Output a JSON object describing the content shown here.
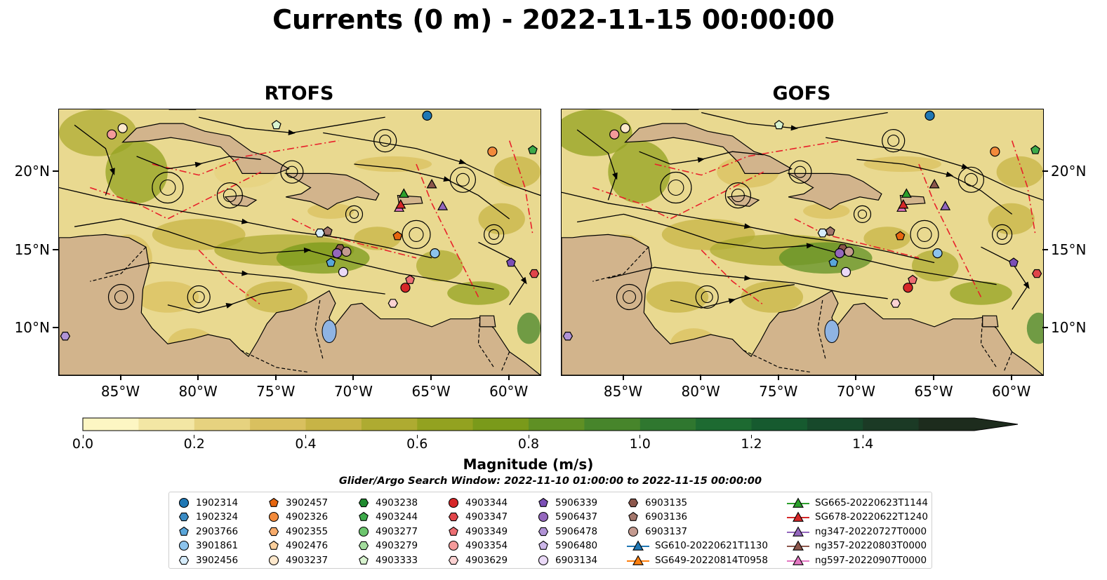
{
  "figure": {
    "title": "Currents (0 m) - 2022-11-15 00:00:00",
    "window_text": "Glider/Argo Search Window: 2022-11-10 01:00:00 to 2022-11-15 00:00:00"
  },
  "chart_data": {
    "type": "heatmap",
    "variable": "Currents (0 m)",
    "panels": [
      {
        "title": "RTOFS"
      },
      {
        "title": "GOFS"
      }
    ],
    "lon_range": [
      -89,
      -58
    ],
    "lat_range": [
      7,
      24
    ],
    "x_ticks": [
      -85,
      -80,
      -75,
      -70,
      -65,
      -60
    ],
    "x_tick_labels": [
      "85°W",
      "80°W",
      "75°W",
      "70°W",
      "65°W",
      "60°W"
    ],
    "y_ticks": [
      10,
      15,
      20
    ],
    "y_tick_labels": [
      "10°N",
      "15°N",
      "20°N"
    ],
    "colorbar": {
      "label": "Magnitude (m/s)",
      "min": 0.0,
      "max": 1.6,
      "step": 0.1,
      "extend": "max",
      "ticks": [
        0.0,
        0.2,
        0.4,
        0.6,
        0.8,
        1.0,
        1.2,
        1.4
      ],
      "tick_labels": [
        "0.0",
        "0.2",
        "0.4",
        "0.6",
        "0.8",
        "1.0",
        "1.2",
        "1.4"
      ],
      "colors": [
        "#fdf6c3",
        "#f3e6a4",
        "#e6d27f",
        "#d9c05f",
        "#c7b446",
        "#aeab31",
        "#93a220",
        "#7a9a1a",
        "#5f9024",
        "#47852b",
        "#2f772f",
        "#1d6a31",
        "#165a2f",
        "#17492b",
        "#1b3a25",
        "#1d2c1d"
      ]
    },
    "legend": [
      {
        "label": "1902314",
        "marker": "circle",
        "color": "#1f77b4"
      },
      {
        "label": "1902324",
        "marker": "hexagon",
        "color": "#3a8bc4"
      },
      {
        "label": "2903766",
        "marker": "pentagon",
        "color": "#5aa6da"
      },
      {
        "label": "3901861",
        "marker": "circle",
        "color": "#8cc3ec"
      },
      {
        "label": "3902456",
        "marker": "hexagon",
        "color": "#d6ecfb"
      },
      {
        "label": "3902457",
        "marker": "pentagon",
        "color": "#e6660f"
      },
      {
        "label": "4902326",
        "marker": "circle",
        "color": "#f28a3b"
      },
      {
        "label": "4902355",
        "marker": "hexagon",
        "color": "#f7ab6b"
      },
      {
        "label": "4902476",
        "marker": "pentagon",
        "color": "#fbcf9c"
      },
      {
        "label": "4903237",
        "marker": "circle",
        "color": "#fde8cc"
      },
      {
        "label": "4903238",
        "marker": "hexagon",
        "color": "#1f8a2e"
      },
      {
        "label": "4903244",
        "marker": "pentagon",
        "color": "#3daa4a"
      },
      {
        "label": "4903277",
        "marker": "circle",
        "color": "#6cc56d"
      },
      {
        "label": "4903279",
        "marker": "hexagon",
        "color": "#a3dc9d"
      },
      {
        "label": "4903333",
        "marker": "pentagon",
        "color": "#d8f3cf"
      },
      {
        "label": "4903344",
        "marker": "circle",
        "color": "#d62728"
      },
      {
        "label": "4903347",
        "marker": "hexagon",
        "color": "#e0454a"
      },
      {
        "label": "4903349",
        "marker": "pentagon",
        "color": "#ec6e72"
      },
      {
        "label": "4903354",
        "marker": "circle",
        "color": "#f49a9a"
      },
      {
        "label": "4903629",
        "marker": "hexagon",
        "color": "#fbd2d2"
      },
      {
        "label": "5906339",
        "marker": "pentagon",
        "color": "#7b4fb6"
      },
      {
        "label": "5906437",
        "marker": "circle",
        "color": "#9467bd"
      },
      {
        "label": "5906478",
        "marker": "hexagon",
        "color": "#b193d6"
      },
      {
        "label": "5906480",
        "marker": "pentagon",
        "color": "#cdb7e9"
      },
      {
        "label": "6903134",
        "marker": "circle",
        "color": "#ead9f7"
      },
      {
        "label": "6903135",
        "marker": "hexagon",
        "color": "#8c564b"
      },
      {
        "label": "6903136",
        "marker": "pentagon",
        "color": "#a4776c"
      },
      {
        "label": "6903137",
        "marker": "circle",
        "color": "#c49a8f"
      },
      {
        "label": "SG610-20220621T1130",
        "marker": "triangle-line",
        "color": "#1f77b4"
      },
      {
        "label": "SG649-20220814T0958",
        "marker": "triangle-line",
        "color": "#ff7f0e"
      },
      {
        "label": "SG665-20220623T1144",
        "marker": "triangle-line",
        "color": "#2ca02c"
      },
      {
        "label": "SG678-20220622T1240",
        "marker": "triangle-line",
        "color": "#d62728"
      },
      {
        "label": "ng347-20220727T0000",
        "marker": "triangle-line",
        "color": "#9467bd"
      },
      {
        "label": "ng357-20220803T0000",
        "marker": "triangle-line",
        "color": "#8c564b"
      },
      {
        "label": "ng597-20220907T0000",
        "marker": "triangle-line",
        "color": "#e377c2"
      }
    ],
    "markers": [
      {
        "id": "1902314",
        "lon": -65.3,
        "lat": 23.6
      },
      {
        "id": "4903237",
        "lon": -84.9,
        "lat": 22.8
      },
      {
        "id": "4903354",
        "lon": -85.6,
        "lat": 22.4
      },
      {
        "id": "4903333",
        "lon": -75.0,
        "lat": 23.0
      },
      {
        "id": "4902326",
        "lon": -61.1,
        "lat": 21.3
      },
      {
        "id": "4903244",
        "lon": -58.5,
        "lat": 21.4
      },
      {
        "id": "SG665-20220623T1144",
        "lon": -66.8,
        "lat": 18.6
      },
      {
        "id": "ng357-20220803T0000",
        "lon": -65.0,
        "lat": 19.2
      },
      {
        "id": "ng597-20220907T0000",
        "lon": -67.1,
        "lat": 17.7
      },
      {
        "id": "SG678-20220622T1240",
        "lon": -67.0,
        "lat": 17.9
      },
      {
        "id": "ng347-20220727T0000",
        "lon": -64.3,
        "lat": 17.8
      },
      {
        "id": "3902457",
        "lon": -67.2,
        "lat": 15.9
      },
      {
        "id": "3902456",
        "lon": -72.2,
        "lat": 16.1
      },
      {
        "id": "6903136",
        "lon": -71.7,
        "lat": 16.2
      },
      {
        "id": "6903135",
        "lon": -70.9,
        "lat": 15.1
      },
      {
        "id": "5906437",
        "lon": -71.1,
        "lat": 14.8
      },
      {
        "id": "6903137",
        "lon": -70.5,
        "lat": 14.9
      },
      {
        "id": "3901861",
        "lon": -64.8,
        "lat": 14.8
      },
      {
        "id": "2903766",
        "lon": -71.5,
        "lat": 14.2
      },
      {
        "id": "6903134",
        "lon": -70.7,
        "lat": 13.6
      },
      {
        "id": "5906339",
        "lon": -59.9,
        "lat": 14.2
      },
      {
        "id": "4903347",
        "lon": -58.4,
        "lat": 13.5
      },
      {
        "id": "4903349",
        "lon": -66.4,
        "lat": 13.1
      },
      {
        "id": "4903344",
        "lon": -66.7,
        "lat": 12.6
      },
      {
        "id": "4903629",
        "lon": -67.5,
        "lat": 11.6
      },
      {
        "id": "5906478",
        "lon": -88.6,
        "lat": 9.5
      }
    ]
  }
}
